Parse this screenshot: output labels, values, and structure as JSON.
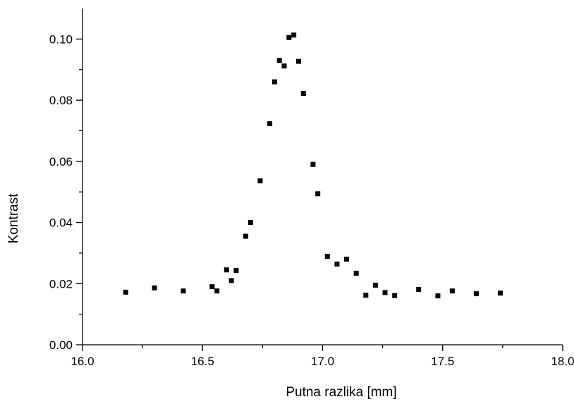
{
  "chart_data": {
    "type": "scatter",
    "title": "",
    "xlabel": "Putna razlika  [mm]",
    "ylabel": "Kontrast",
    "xlim": [
      16.0,
      18.0
    ],
    "ylim": [
      0.0,
      0.11
    ],
    "x_ticks": [
      "16.0",
      "16.5",
      "17.0",
      "17.5",
      "18.0"
    ],
    "x_tick_values": [
      16.0,
      16.5,
      17.0,
      17.5,
      18.0
    ],
    "y_ticks": [
      "0.00",
      "0.02",
      "0.04",
      "0.06",
      "0.08",
      "0.10"
    ],
    "y_tick_values": [
      0.0,
      0.02,
      0.04,
      0.06,
      0.08,
      0.1
    ],
    "grid": false,
    "legend": "none",
    "marker": "square",
    "marker_color": "#000000",
    "series": [
      {
        "points": [
          {
            "x": 16.18,
            "y": 0.0172
          },
          {
            "x": 16.3,
            "y": 0.0186
          },
          {
            "x": 16.42,
            "y": 0.0176
          },
          {
            "x": 16.54,
            "y": 0.019
          },
          {
            "x": 16.56,
            "y": 0.0176
          },
          {
            "x": 16.6,
            "y": 0.0245
          },
          {
            "x": 16.62,
            "y": 0.021
          },
          {
            "x": 16.64,
            "y": 0.0243
          },
          {
            "x": 16.68,
            "y": 0.0355
          },
          {
            "x": 16.7,
            "y": 0.04
          },
          {
            "x": 16.74,
            "y": 0.0536
          },
          {
            "x": 16.78,
            "y": 0.0723
          },
          {
            "x": 16.8,
            "y": 0.086
          },
          {
            "x": 16.82,
            "y": 0.093
          },
          {
            "x": 16.84,
            "y": 0.0912
          },
          {
            "x": 16.86,
            "y": 0.1005
          },
          {
            "x": 16.88,
            "y": 0.1013
          },
          {
            "x": 16.9,
            "y": 0.0927
          },
          {
            "x": 16.92,
            "y": 0.0822
          },
          {
            "x": 16.96,
            "y": 0.059
          },
          {
            "x": 16.98,
            "y": 0.0494
          },
          {
            "x": 17.02,
            "y": 0.0289
          },
          {
            "x": 17.06,
            "y": 0.0264
          },
          {
            "x": 17.1,
            "y": 0.028
          },
          {
            "x": 17.14,
            "y": 0.0234
          },
          {
            "x": 17.18,
            "y": 0.0162
          },
          {
            "x": 17.22,
            "y": 0.0195
          },
          {
            "x": 17.26,
            "y": 0.0171
          },
          {
            "x": 17.3,
            "y": 0.0161
          },
          {
            "x": 17.4,
            "y": 0.0181
          },
          {
            "x": 17.48,
            "y": 0.016
          },
          {
            "x": 17.54,
            "y": 0.0176
          },
          {
            "x": 17.64,
            "y": 0.0167
          },
          {
            "x": 17.74,
            "y": 0.0169
          }
        ]
      }
    ]
  }
}
